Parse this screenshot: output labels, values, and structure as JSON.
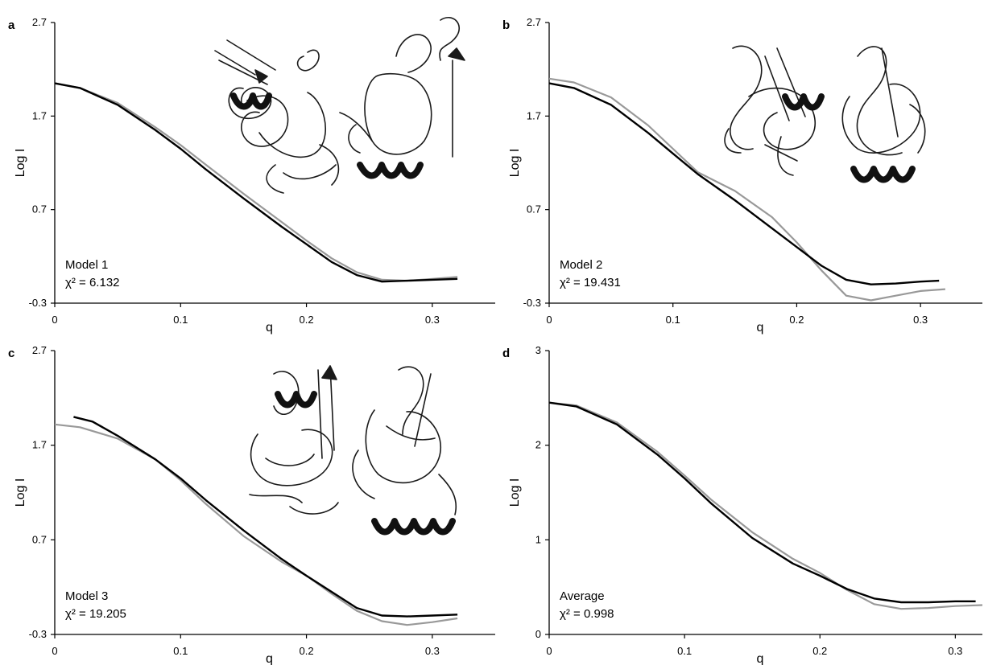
{
  "chart_data": [
    {
      "type": "line",
      "panel_label": "a",
      "xlabel": "q",
      "ylabel": "Log I",
      "xlim": [
        0,
        0.35
      ],
      "ylim": [
        -0.3,
        2.7
      ],
      "x_ticks": [
        "0",
        "0.1",
        "0.2",
        "0.3"
      ],
      "y_ticks": [
        "-0.3",
        "0.7",
        "1.7",
        "2.7"
      ],
      "annotation": {
        "model": "Model 1",
        "chi": "χ² = 6.132"
      },
      "series": [
        {
          "color": "#000000",
          "x": [
            0,
            0.02,
            0.05,
            0.08,
            0.1,
            0.12,
            0.15,
            0.18,
            0.2,
            0.22,
            0.24,
            0.26,
            0.28,
            0.3,
            0.32
          ],
          "y": [
            2.05,
            2.0,
            1.82,
            1.55,
            1.35,
            1.13,
            0.82,
            0.52,
            0.33,
            0.14,
            0.0,
            -0.07,
            -0.06,
            -0.05,
            -0.04
          ]
        },
        {
          "color": "#999999",
          "x": [
            0,
            0.02,
            0.05,
            0.08,
            0.1,
            0.12,
            0.15,
            0.18,
            0.2,
            0.22,
            0.24,
            0.26,
            0.28,
            0.3,
            0.32
          ],
          "y": [
            2.05,
            2.0,
            1.84,
            1.58,
            1.39,
            1.18,
            0.87,
            0.57,
            0.37,
            0.18,
            0.03,
            -0.05,
            -0.06,
            -0.04,
            -0.02
          ]
        }
      ]
    },
    {
      "type": "line",
      "panel_label": "b",
      "xlabel": "q",
      "ylabel": "Log I",
      "xlim": [
        0,
        0.35
      ],
      "ylim": [
        -0.3,
        2.7
      ],
      "x_ticks": [
        "0",
        "0.1",
        "0.2",
        "0.3"
      ],
      "y_ticks": [
        "-0.3",
        "0.7",
        "1.7",
        "2.7"
      ],
      "annotation": {
        "model": "Model 2",
        "chi": "χ² = 19.431"
      },
      "series": [
        {
          "color": "#000000",
          "x": [
            0,
            0.02,
            0.05,
            0.08,
            0.1,
            0.12,
            0.15,
            0.18,
            0.2,
            0.22,
            0.24,
            0.26,
            0.28,
            0.3,
            0.315
          ],
          "y": [
            2.05,
            2.0,
            1.82,
            1.52,
            1.3,
            1.08,
            0.8,
            0.5,
            0.3,
            0.1,
            -0.05,
            -0.1,
            -0.09,
            -0.07,
            -0.06
          ]
        },
        {
          "color": "#999999",
          "x": [
            0,
            0.02,
            0.05,
            0.08,
            0.1,
            0.12,
            0.15,
            0.18,
            0.2,
            0.22,
            0.24,
            0.26,
            0.28,
            0.3,
            0.32
          ],
          "y": [
            2.1,
            2.06,
            1.9,
            1.6,
            1.35,
            1.1,
            0.9,
            0.62,
            0.35,
            0.05,
            -0.22,
            -0.27,
            -0.22,
            -0.17,
            -0.15
          ]
        }
      ]
    },
    {
      "type": "line",
      "panel_label": "c",
      "xlabel": "q",
      "ylabel": "Log I",
      "xlim": [
        0,
        0.35
      ],
      "ylim": [
        -0.3,
        2.7
      ],
      "x_ticks": [
        "0",
        "0.1",
        "0.2",
        "0.3"
      ],
      "y_ticks": [
        "-0.3",
        "0.7",
        "1.7",
        "2.7"
      ],
      "annotation": {
        "model": "Model 3",
        "chi": "χ² = 19.205"
      },
      "series": [
        {
          "color": "#000000",
          "x": [
            0.015,
            0.03,
            0.05,
            0.08,
            0.1,
            0.12,
            0.15,
            0.18,
            0.2,
            0.22,
            0.24,
            0.26,
            0.28,
            0.3,
            0.32
          ],
          "y": [
            2.0,
            1.95,
            1.8,
            1.55,
            1.35,
            1.12,
            0.8,
            0.5,
            0.32,
            0.15,
            -0.02,
            -0.1,
            -0.11,
            -0.1,
            -0.09
          ]
        },
        {
          "color": "#999999",
          "x": [
            0,
            0.02,
            0.05,
            0.08,
            0.1,
            0.12,
            0.15,
            0.18,
            0.2,
            0.22,
            0.24,
            0.26,
            0.28,
            0.3,
            0.32
          ],
          "y": [
            1.92,
            1.89,
            1.77,
            1.55,
            1.33,
            1.08,
            0.74,
            0.47,
            0.32,
            0.13,
            -0.05,
            -0.16,
            -0.2,
            -0.17,
            -0.13
          ]
        }
      ]
    },
    {
      "type": "line",
      "panel_label": "d",
      "xlabel": "q",
      "ylabel": "Log I",
      "xlim": [
        0,
        0.32
      ],
      "ylim": [
        0,
        3
      ],
      "x_ticks": [
        "0",
        "0.1",
        "0.2",
        "0.3"
      ],
      "y_ticks": [
        "0",
        "1",
        "2",
        "3"
      ],
      "annotation": {
        "model": "Average",
        "chi": "χ² = 0.998"
      },
      "series": [
        {
          "color": "#000000",
          "x": [
            0,
            0.02,
            0.05,
            0.08,
            0.1,
            0.12,
            0.15,
            0.18,
            0.2,
            0.22,
            0.24,
            0.26,
            0.28,
            0.3,
            0.315
          ],
          "y": [
            2.45,
            2.41,
            2.22,
            1.9,
            1.65,
            1.38,
            1.02,
            0.75,
            0.62,
            0.48,
            0.38,
            0.34,
            0.34,
            0.35,
            0.35
          ]
        },
        {
          "color": "#999999",
          "x": [
            0,
            0.02,
            0.05,
            0.08,
            0.1,
            0.12,
            0.15,
            0.18,
            0.2,
            0.22,
            0.24,
            0.26,
            0.28,
            0.3,
            0.32
          ],
          "y": [
            2.45,
            2.42,
            2.24,
            1.93,
            1.68,
            1.42,
            1.08,
            0.8,
            0.65,
            0.47,
            0.32,
            0.27,
            0.28,
            0.3,
            0.31
          ]
        }
      ]
    }
  ]
}
